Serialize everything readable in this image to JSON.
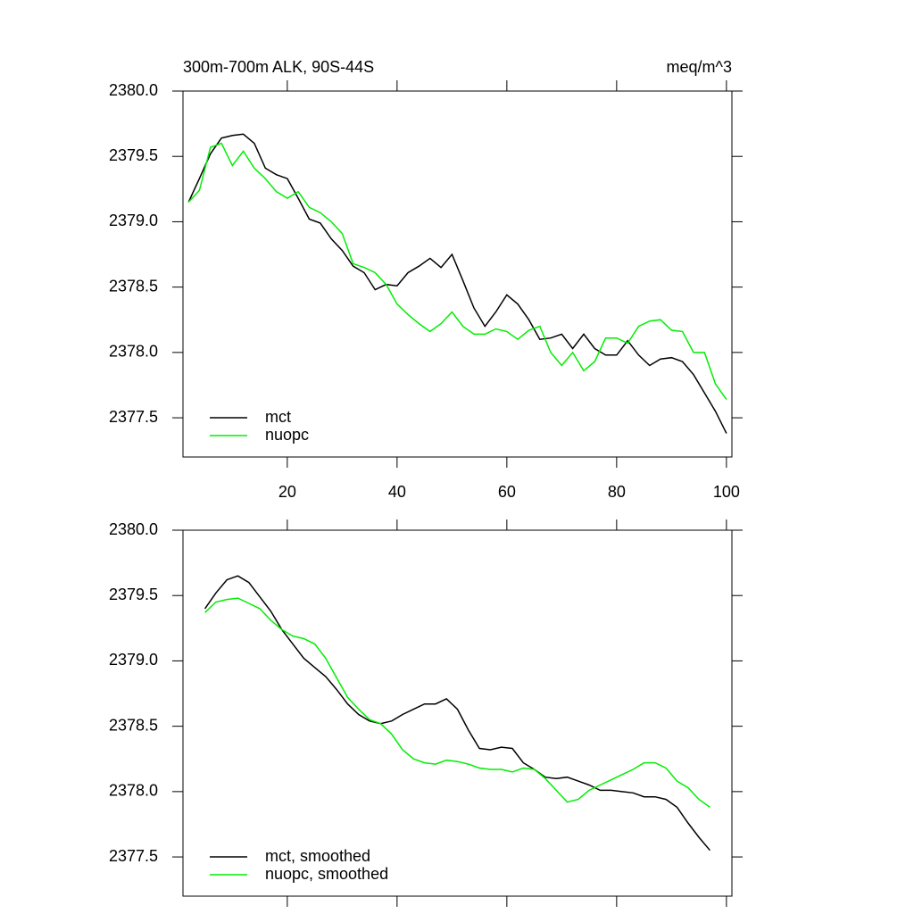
{
  "chart_data": [
    {
      "type": "line",
      "title": "300m-700m ALK, 90S-44S",
      "units": "meq/m^3",
      "xlim": [
        1,
        101
      ],
      "xticks": [
        20,
        40,
        60,
        80,
        100
      ],
      "ylim": [
        2377.2,
        2380.0
      ],
      "yticks": [
        {
          "value": 2380.0,
          "label": "2380.0"
        },
        2379.5,
        {
          "value": 2379.0,
          "label": "2379.0"
        },
        2378.5,
        {
          "value": 2378.0,
          "label": "2378.0"
        },
        2377.5
      ],
      "legend": "lower left",
      "x": [
        2,
        4,
        6,
        8,
        10,
        12,
        14,
        16,
        18,
        20,
        22,
        24,
        26,
        28,
        30,
        32,
        34,
        36,
        38,
        40,
        42,
        44,
        46,
        48,
        50,
        52,
        54,
        56,
        58,
        60,
        62,
        64,
        66,
        68,
        70,
        72,
        74,
        76,
        78,
        80,
        82,
        84,
        86,
        88,
        90,
        92,
        94,
        96,
        98,
        100
      ],
      "series": [
        {
          "name": "mct",
          "color": "#000000",
          "values": [
            2379.15,
            2379.33,
            2379.52,
            2379.64,
            2379.66,
            2379.67,
            2379.6,
            2379.41,
            2379.36,
            2379.33,
            2379.18,
            2379.02,
            2378.99,
            2378.87,
            2378.78,
            2378.66,
            2378.61,
            2378.48,
            2378.52,
            2378.51,
            2378.61,
            2378.66,
            2378.72,
            2378.65,
            2378.75,
            2378.55,
            2378.34,
            2378.2,
            2378.31,
            2378.44,
            2378.37,
            2378.25,
            2378.1,
            2378.11,
            2378.14,
            2378.03,
            2378.14,
            2378.03,
            2377.98,
            2377.98,
            2378.09,
            2377.98,
            2377.9,
            2377.95,
            2377.96,
            2377.93,
            2377.83,
            2377.69,
            2377.55,
            2377.38
          ]
        },
        {
          "name": "nuopc",
          "color": "#00ee00",
          "values": [
            2379.15,
            2379.24,
            2379.57,
            2379.6,
            2379.43,
            2379.54,
            2379.41,
            2379.33,
            2379.23,
            2379.18,
            2379.23,
            2379.11,
            2379.07,
            2379.0,
            2378.91,
            2378.68,
            2378.65,
            2378.61,
            2378.52,
            2378.37,
            2378.29,
            2378.22,
            2378.16,
            2378.22,
            2378.31,
            2378.2,
            2378.14,
            2378.14,
            2378.18,
            2378.16,
            2378.1,
            2378.17,
            2378.2,
            2378.0,
            2377.9,
            2378.0,
            2377.86,
            2377.93,
            2378.11,
            2378.11,
            2378.07,
            2378.2,
            2378.24,
            2378.25,
            2378.17,
            2378.16,
            2378.0,
            2378.0,
            2377.76,
            2377.64
          ]
        }
      ]
    },
    {
      "type": "line",
      "xlim": [
        1,
        101
      ],
      "ylim": [
        2377.2,
        2380.0
      ],
      "yticks": [
        {
          "value": 2380.0,
          "label": "2380.0"
        },
        2379.5,
        {
          "value": 2379.0,
          "label": "2379.0"
        },
        2378.5,
        {
          "value": 2378.0,
          "label": "2378.0"
        },
        2377.5
      ],
      "legend": "lower left",
      "x": [
        5,
        7,
        9,
        11,
        13,
        15,
        17,
        19,
        21,
        23,
        25,
        27,
        29,
        31,
        33,
        35,
        37,
        39,
        41,
        43,
        45,
        47,
        49,
        51,
        53,
        55,
        57,
        59,
        61,
        63,
        65,
        67,
        69,
        71,
        73,
        75,
        77,
        79,
        81,
        83,
        85,
        87,
        89,
        91,
        93,
        95,
        97
      ],
      "series": [
        {
          "name": "mct, smoothed",
          "color": "#000000",
          "values": [
            2379.4,
            2379.52,
            2379.62,
            2379.65,
            2379.6,
            2379.49,
            2379.38,
            2379.24,
            2379.13,
            2379.02,
            2378.95,
            2378.88,
            2378.78,
            2378.67,
            2378.59,
            2378.54,
            2378.52,
            2378.54,
            2378.59,
            2378.63,
            2378.67,
            2378.67,
            2378.71,
            2378.63,
            2378.47,
            2378.33,
            2378.32,
            2378.34,
            2378.33,
            2378.22,
            2378.17,
            2378.11,
            2378.1,
            2378.11,
            2378.08,
            2378.05,
            2378.01,
            2378.01,
            2378.0,
            2377.99,
            2377.96,
            2377.96,
            2377.94,
            2377.88,
            2377.76,
            2377.65,
            2377.55
          ]
        },
        {
          "name": "nuopc, smoothed",
          "color": "#00ee00",
          "values": [
            2379.37,
            2379.45,
            2379.47,
            2379.48,
            2379.44,
            2379.4,
            2379.31,
            2379.24,
            2379.19,
            2379.17,
            2379.13,
            2379.02,
            2378.87,
            2378.72,
            2378.63,
            2378.55,
            2378.52,
            2378.44,
            2378.32,
            2378.25,
            2378.22,
            2378.21,
            2378.24,
            2378.23,
            2378.21,
            2378.18,
            2378.17,
            2378.17,
            2378.15,
            2378.18,
            2378.17,
            2378.1,
            2378.01,
            2377.92,
            2377.94,
            2378.01,
            2378.05,
            2378.09,
            2378.13,
            2378.17,
            2378.22,
            2378.22,
            2378.18,
            2378.08,
            2378.03,
            2377.94,
            2377.88
          ]
        }
      ]
    }
  ]
}
